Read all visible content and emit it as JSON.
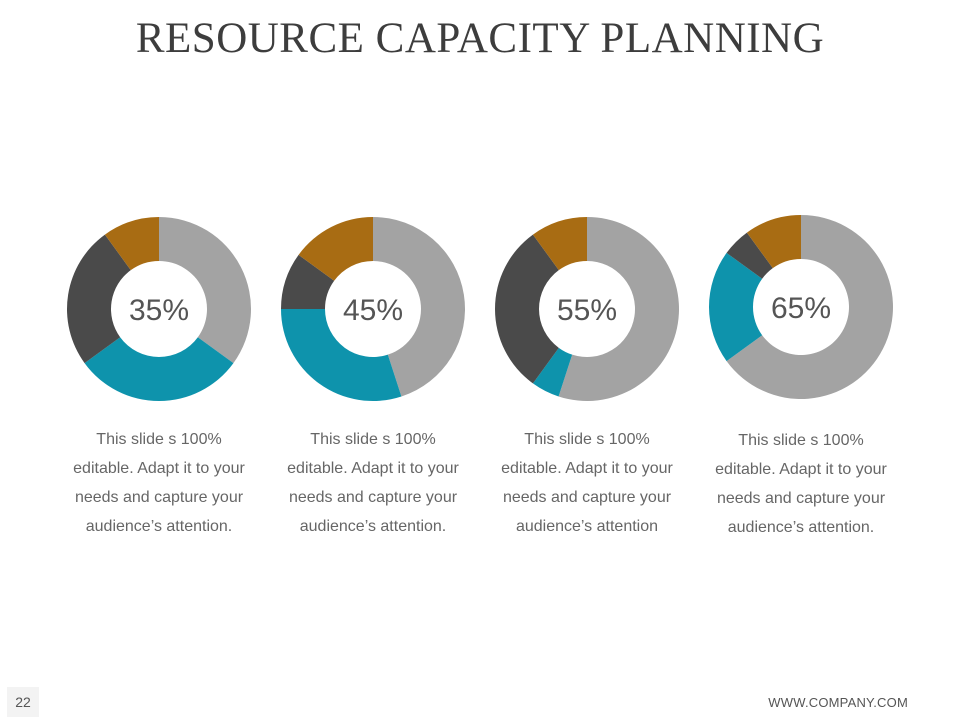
{
  "slide": {
    "title": "RESOURCE CAPACITY PLANNING",
    "page_number": "22",
    "footer_url": "WWW.COMPANY.COM"
  },
  "colors": {
    "gray": "#a3a3a3",
    "teal": "#0e93ac",
    "dark": "#4a4a4a",
    "gold": "#a86c13"
  },
  "chart_data": [
    {
      "type": "pie",
      "center_label": "35%",
      "segments": [
        {
          "color": "gray",
          "value": 35
        },
        {
          "color": "teal",
          "value": 30
        },
        {
          "color": "dark",
          "value": 25
        },
        {
          "color": "gold",
          "value": 10
        }
      ],
      "caption": [
        "This slide s 100%",
        "editable. Adapt it to your",
        "needs and capture your",
        "audience’s attention."
      ]
    },
    {
      "type": "pie",
      "center_label": "45%",
      "segments": [
        {
          "color": "gray",
          "value": 45
        },
        {
          "color": "teal",
          "value": 30
        },
        {
          "color": "dark",
          "value": 10
        },
        {
          "color": "gold",
          "value": 15
        }
      ],
      "caption": [
        "This slide s 100%",
        "editable. Adapt it to your",
        "needs and capture your",
        "audience’s attention."
      ]
    },
    {
      "type": "pie",
      "center_label": "55%",
      "segments": [
        {
          "color": "gray",
          "value": 55
        },
        {
          "color": "teal",
          "value": 5
        },
        {
          "color": "dark",
          "value": 30
        },
        {
          "color": "gold",
          "value": 10
        }
      ],
      "caption": [
        "This slide s 100%",
        "editable. Adapt it to your",
        "needs and capture your",
        "audience’s attention"
      ]
    },
    {
      "type": "pie",
      "center_label": "65%",
      "segments": [
        {
          "color": "gray",
          "value": 65
        },
        {
          "color": "teal",
          "value": 20
        },
        {
          "color": "dark",
          "value": 5
        },
        {
          "color": "gold",
          "value": 10
        }
      ],
      "caption": [
        "This slide s 100%",
        "editable. Adapt it to your",
        "needs and capture your",
        "audience’s attention."
      ]
    }
  ]
}
